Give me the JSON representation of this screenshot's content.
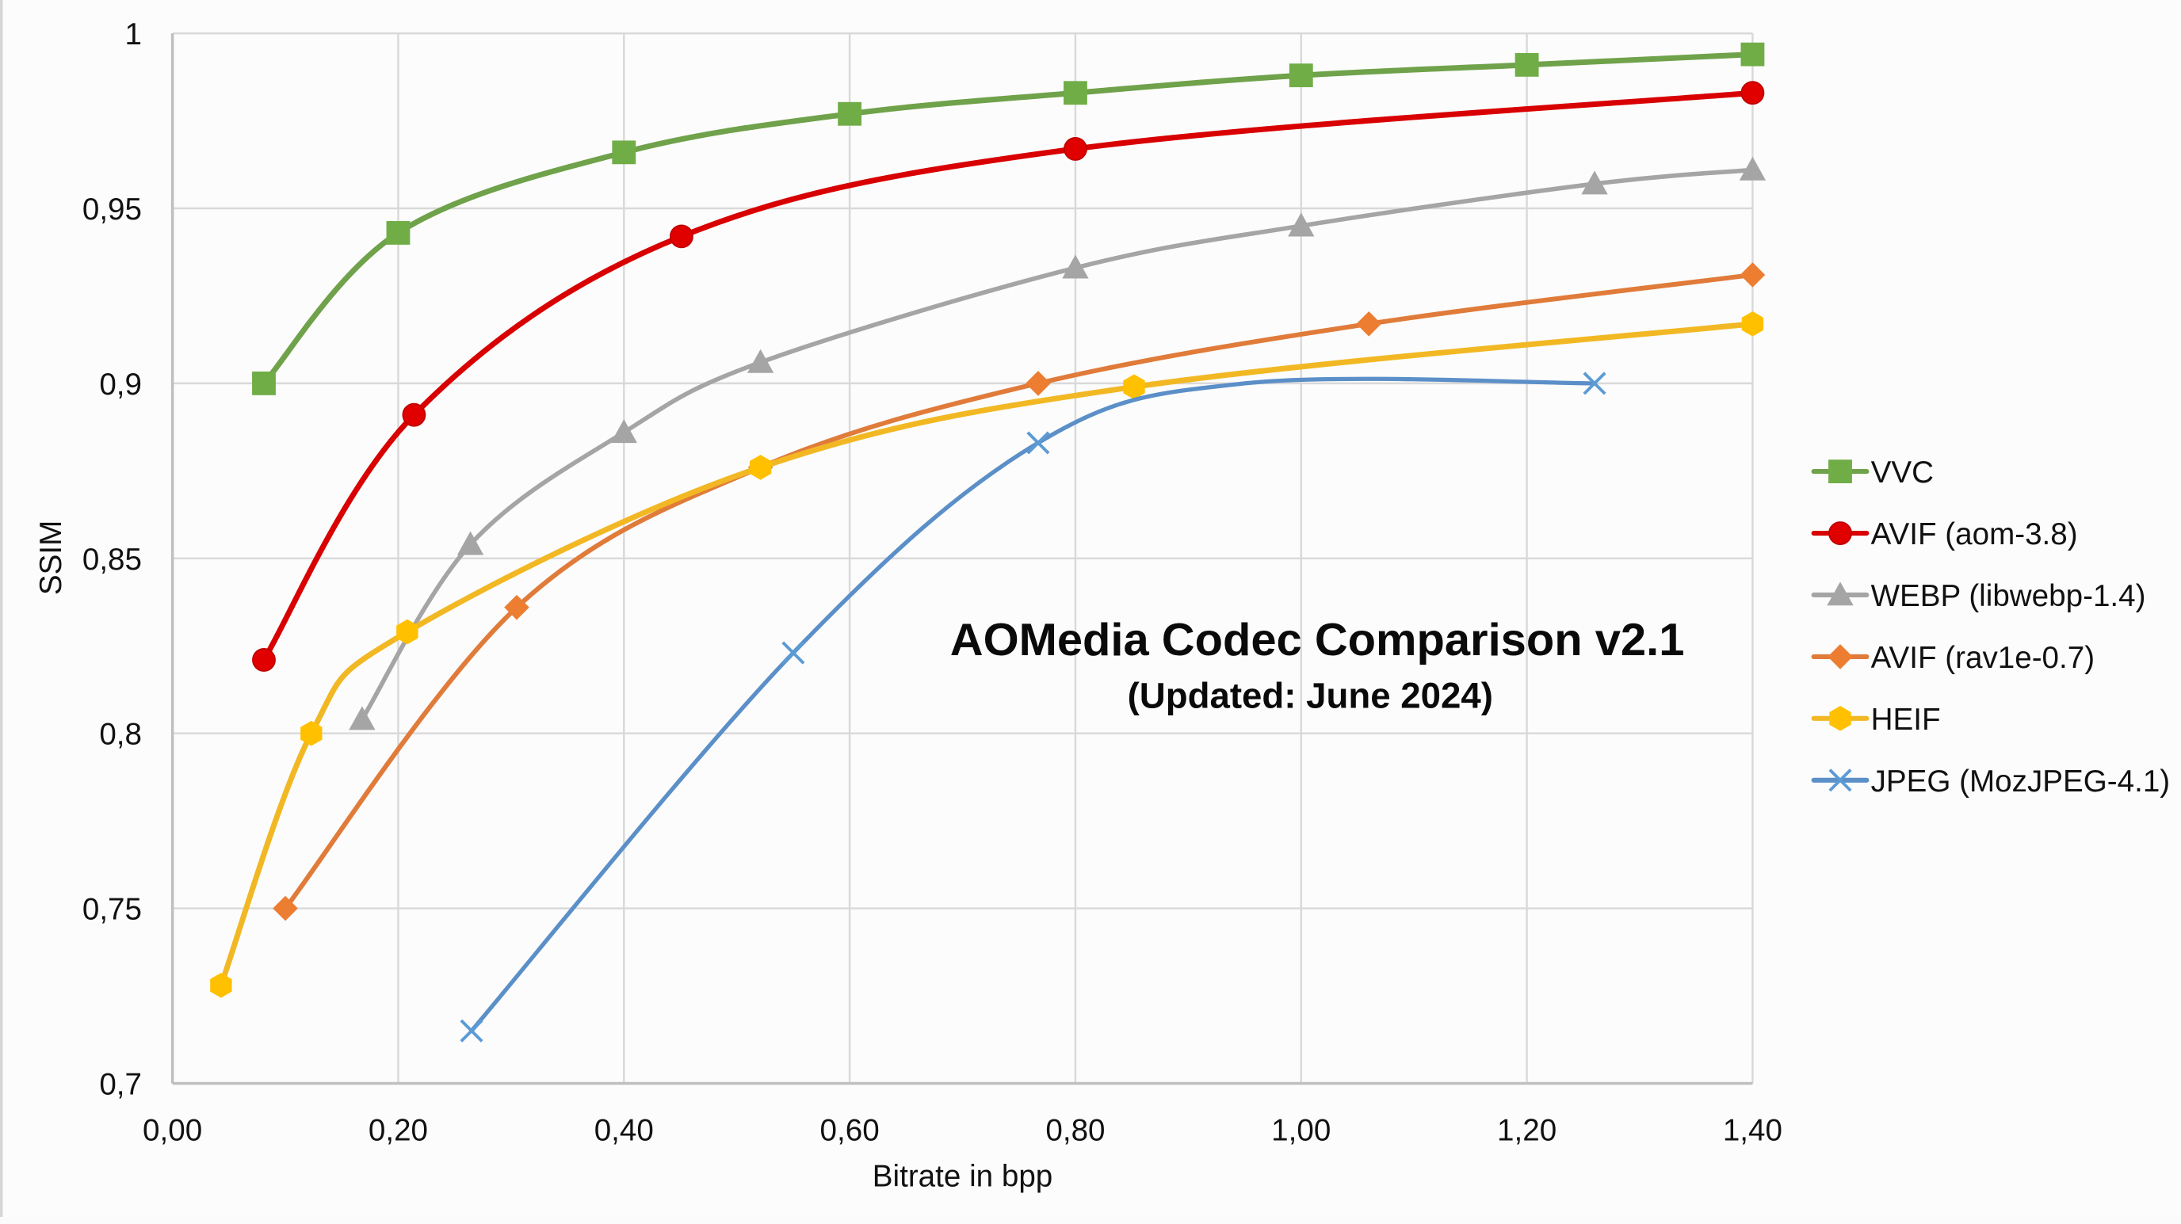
{
  "chart_data": {
    "type": "line",
    "title": "AOMedia Codec Comparison v2.1",
    "subtitle": "(Updated: June 2024)",
    "xlabel": "Bitrate in bpp",
    "ylabel": "SSIM",
    "xlim": [
      0,
      1.4
    ],
    "ylim": [
      0.7,
      1.0
    ],
    "xticks": [
      0,
      0.2,
      0.4,
      0.6,
      0.8,
      1.0,
      1.2,
      1.4
    ],
    "xtick_labels": [
      "0,00",
      "0,20",
      "0,40",
      "0,60",
      "0,80",
      "1,00",
      "1,20",
      "1,40"
    ],
    "yticks": [
      0.7,
      0.75,
      0.8,
      0.85,
      0.9,
      0.95,
      1.0
    ],
    "ytick_labels": [
      "0,7",
      "0,75",
      "0,8",
      "0,85",
      "0,9",
      "0,95",
      "1"
    ],
    "grid": true,
    "legend_position": "right",
    "series": [
      {
        "name": "VVC",
        "color": "#70AD47",
        "marker": "square",
        "points": [
          [
            0.081,
            0.9
          ],
          [
            0.2,
            0.943
          ],
          [
            0.4,
            0.966
          ],
          [
            0.6,
            0.977
          ],
          [
            0.8,
            0.983
          ],
          [
            1.0,
            0.988
          ],
          [
            1.2,
            0.991
          ],
          [
            1.4,
            0.994
          ]
        ]
      },
      {
        "name": "AVIF (aom-3.8)",
        "color": "#E00000",
        "marker": "circle",
        "points": [
          [
            0.081,
            0.821
          ],
          [
            0.214,
            0.891
          ],
          [
            0.451,
            0.942
          ],
          [
            0.8,
            0.967
          ],
          [
            1.4,
            0.983
          ]
        ]
      },
      {
        "name": "WEBP (libwebp-1.4)",
        "color": "#A5A5A5",
        "marker": "triangle",
        "points": [
          [
            0.168,
            0.804
          ],
          [
            0.264,
            0.854
          ],
          [
            0.4,
            0.886
          ],
          [
            0.521,
            0.906
          ],
          [
            0.8,
            0.933
          ],
          [
            1.0,
            0.945
          ],
          [
            1.26,
            0.957
          ],
          [
            1.4,
            0.961
          ]
        ]
      },
      {
        "name": "AVIF (rav1e-0.7)",
        "color": "#ED7D31",
        "marker": "diamond",
        "points": [
          [
            0.1,
            0.75
          ],
          [
            0.305,
            0.836
          ],
          [
            0.521,
            0.876
          ],
          [
            0.767,
            0.9
          ],
          [
            1.06,
            0.917
          ],
          [
            1.4,
            0.931
          ]
        ]
      },
      {
        "name": "HEIF",
        "color": "#FFC000",
        "marker": "hexagon",
        "points": [
          [
            0.043,
            0.728
          ],
          [
            0.123,
            0.8
          ],
          [
            0.208,
            0.829
          ],
          [
            0.521,
            0.876
          ],
          [
            0.852,
            0.899
          ],
          [
            1.4,
            0.917
          ]
        ]
      },
      {
        "name": "JPEG (MozJPEG-4.1)",
        "color": "#5B9BD5",
        "marker": "x",
        "points": [
          [
            0.265,
            0.715
          ],
          [
            0.55,
            0.823
          ],
          [
            0.767,
            0.883
          ],
          [
            0.95,
            0.9
          ],
          [
            1.26,
            0.9
          ]
        ],
        "unmarked_points": [
          3
        ]
      }
    ]
  }
}
